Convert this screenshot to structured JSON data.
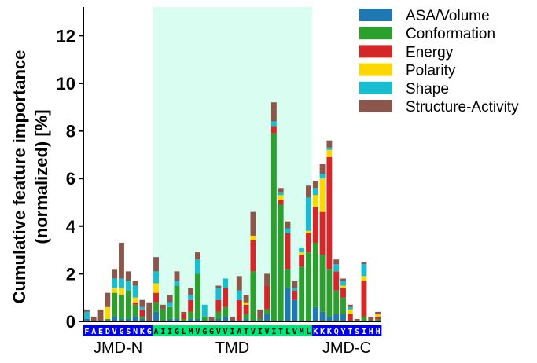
{
  "chart_data": {
    "type": "bar",
    "stacked": true,
    "ylabel_line1": "Cumulative feature importance",
    "ylabel_line2": "(normalized) [%]",
    "ylim": [
      0,
      13.2
    ],
    "yticks": [
      "0",
      "2",
      "4",
      "6",
      "8",
      "10",
      "12"
    ],
    "ytick_values": [
      0,
      2,
      4,
      6,
      8,
      10,
      12
    ],
    "categories": [
      "F",
      "A",
      "E",
      "D",
      "V",
      "G",
      "S",
      "N",
      "K",
      "G",
      "A",
      "I",
      "I",
      "G",
      "L",
      "M",
      "V",
      "G",
      "G",
      "V",
      "V",
      "I",
      "A",
      "T",
      "V",
      "I",
      "V",
      "I",
      "T",
      "L",
      "V",
      "M",
      "L",
      "K",
      "K",
      "K",
      "Q",
      "Y",
      "T",
      "S",
      "I",
      "H",
      "H"
    ],
    "region_labels": [
      {
        "label": "JMD-N",
        "start": 0,
        "end": 9
      },
      {
        "label": "TMD",
        "start": 10,
        "end": 32
      },
      {
        "label": "JMD-C",
        "start": 33,
        "end": 42
      }
    ],
    "series": [
      {
        "name": "ASA/Volume",
        "color": "#1f77b4",
        "values": [
          0.1,
          0,
          0,
          0,
          0.2,
          0.1,
          0.1,
          0.2,
          0.1,
          0,
          0.4,
          0,
          0.1,
          0.1,
          0,
          0.1,
          0.1,
          0,
          0,
          0.1,
          0.2,
          0,
          0,
          0.1,
          0,
          0,
          0.3,
          0,
          0,
          1.4,
          0.9,
          0,
          0,
          0.6,
          0.4,
          0.2,
          0.3,
          0.3,
          0,
          0,
          0,
          0,
          0
        ]
      },
      {
        "name": "Conformation",
        "color": "#2ca02c",
        "values": [
          0,
          0,
          0,
          0.1,
          1.0,
          1.0,
          1.2,
          0.5,
          0.1,
          0,
          0.4,
          0.5,
          0.5,
          1.4,
          0.1,
          0.3,
          1.9,
          0.2,
          0,
          0.3,
          0.4,
          0,
          0,
          0.2,
          2.1,
          0.1,
          0.2,
          7.9,
          4.9,
          0.8,
          0,
          2.3,
          2.9,
          2.7,
          2.4,
          2.0,
          1.0,
          0.7,
          0,
          0,
          0.2,
          0,
          0.1
        ]
      },
      {
        "name": "Energy",
        "color": "#d62728",
        "values": [
          0,
          0,
          0,
          0,
          0,
          0,
          0,
          0.1,
          0.3,
          0,
          0.4,
          0,
          0,
          0,
          0.2,
          0.5,
          0,
          0,
          0,
          0.5,
          0.8,
          0,
          0.9,
          0.4,
          1.3,
          0,
          1.0,
          0.3,
          0.2,
          1.5,
          0.4,
          0.5,
          0.8,
          1.5,
          1.8,
          4.7,
          0.8,
          0.4,
          0.3,
          0,
          1.5,
          0,
          0.1
        ]
      },
      {
        "name": "Polarity",
        "color": "#ffd700",
        "values": [
          0,
          0,
          0,
          0.5,
          0.2,
          0.3,
          0,
          0.2,
          0,
          0,
          0.4,
          0,
          0,
          0,
          0,
          0,
          0,
          0,
          0,
          0,
          0,
          0,
          0,
          0.1,
          0.2,
          0,
          0,
          0,
          0.2,
          0,
          0,
          0.1,
          0.1,
          0.5,
          1.4,
          0.3,
          0,
          0.1,
          0.2,
          0,
          0.2,
          0,
          0.1
        ]
      },
      {
        "name": "Shape",
        "color": "#17becf",
        "values": [
          0.3,
          0,
          0,
          0,
          0.4,
          0.4,
          0.4,
          0.5,
          0.1,
          0,
          0.5,
          0,
          0.2,
          0.2,
          0,
          0.2,
          0.6,
          0.5,
          0,
          0.5,
          0.4,
          0,
          0.4,
          0,
          0,
          0,
          0,
          0.2,
          0.1,
          0.2,
          0.1,
          0.2,
          1.4,
          0.3,
          0.2,
          0.1,
          0.3,
          0.2,
          0.1,
          0,
          0.5,
          0,
          0
        ]
      },
      {
        "name": "Structure-Activity",
        "color": "#8c564b",
        "values": [
          0.1,
          0.2,
          0.5,
          0.6,
          0.4,
          1.5,
          0.4,
          0.2,
          0.3,
          0.8,
          0.6,
          0.2,
          0.3,
          0.4,
          0.1,
          0.3,
          0.3,
          0,
          0.2,
          0.1,
          0,
          0.2,
          0.6,
          0.3,
          1.0,
          0.4,
          0.5,
          0.8,
          0.2,
          0.3,
          0.3,
          0,
          0.5,
          0.3,
          0.4,
          0.3,
          0.2,
          0.1,
          0.1,
          0.1,
          0.1,
          0.2,
          0.1
        ]
      }
    ]
  }
}
